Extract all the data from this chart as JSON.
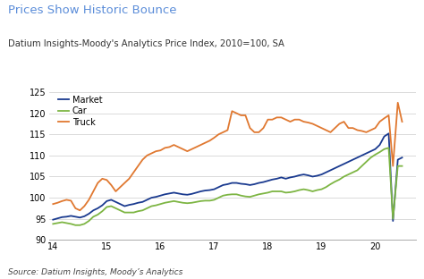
{
  "title": "Prices Show Historic Bounce",
  "subtitle": "Datium Insights-Moody's Analytics Price Index, 2010=100, SA",
  "source": "Source: Datium Insights, Moody’s Analytics",
  "xlim": [
    13.92,
    20.75
  ],
  "ylim": [
    90,
    126
  ],
  "yticks": [
    90,
    95,
    100,
    105,
    110,
    115,
    120,
    125
  ],
  "xticks": [
    14,
    15,
    16,
    17,
    18,
    19,
    20
  ],
  "title_color": "#5B8DD9",
  "subtitle_color": "#333333",
  "source_color": "#444444",
  "line_colors": {
    "Market": "#1A3A8F",
    "Car": "#7DB543",
    "Truck": "#E07830"
  },
  "market_x": [
    14.0,
    14.083,
    14.167,
    14.25,
    14.333,
    14.417,
    14.5,
    14.583,
    14.667,
    14.75,
    14.833,
    14.917,
    15.0,
    15.083,
    15.167,
    15.25,
    15.333,
    15.417,
    15.5,
    15.583,
    15.667,
    15.75,
    15.833,
    15.917,
    16.0,
    16.083,
    16.167,
    16.25,
    16.333,
    16.417,
    16.5,
    16.583,
    16.667,
    16.75,
    16.833,
    16.917,
    17.0,
    17.083,
    17.167,
    17.25,
    17.333,
    17.417,
    17.5,
    17.583,
    17.667,
    17.75,
    17.833,
    17.917,
    18.0,
    18.083,
    18.167,
    18.25,
    18.333,
    18.417,
    18.5,
    18.583,
    18.667,
    18.75,
    18.833,
    18.917,
    19.0,
    19.083,
    19.167,
    19.25,
    19.333,
    19.417,
    19.5,
    19.583,
    19.667,
    19.75,
    19.833,
    19.917,
    20.0,
    20.083,
    20.167,
    20.25,
    20.33,
    20.42,
    20.5
  ],
  "market_y": [
    94.8,
    95.1,
    95.4,
    95.5,
    95.7,
    95.5,
    95.3,
    95.6,
    96.2,
    97.0,
    97.5,
    98.2,
    99.2,
    99.5,
    99.0,
    98.5,
    98.0,
    98.3,
    98.5,
    98.8,
    99.0,
    99.5,
    100.0,
    100.2,
    100.5,
    100.8,
    101.0,
    101.2,
    101.0,
    100.8,
    100.7,
    100.9,
    101.2,
    101.5,
    101.7,
    101.8,
    102.0,
    102.5,
    103.0,
    103.2,
    103.5,
    103.5,
    103.3,
    103.2,
    103.0,
    103.2,
    103.5,
    103.7,
    104.0,
    104.3,
    104.5,
    104.8,
    104.5,
    104.8,
    105.0,
    105.3,
    105.5,
    105.3,
    105.0,
    105.2,
    105.5,
    106.0,
    106.5,
    107.0,
    107.5,
    108.0,
    108.5,
    109.0,
    109.5,
    110.0,
    110.5,
    111.0,
    111.5,
    112.5,
    114.5,
    115.2,
    94.5,
    109.0,
    109.5
  ],
  "car_x": [
    14.0,
    14.083,
    14.167,
    14.25,
    14.333,
    14.417,
    14.5,
    14.583,
    14.667,
    14.75,
    14.833,
    14.917,
    15.0,
    15.083,
    15.167,
    15.25,
    15.333,
    15.417,
    15.5,
    15.583,
    15.667,
    15.75,
    15.833,
    15.917,
    16.0,
    16.083,
    16.167,
    16.25,
    16.333,
    16.417,
    16.5,
    16.583,
    16.667,
    16.75,
    16.833,
    16.917,
    17.0,
    17.083,
    17.167,
    17.25,
    17.333,
    17.417,
    17.5,
    17.583,
    17.667,
    17.75,
    17.833,
    17.917,
    18.0,
    18.083,
    18.167,
    18.25,
    18.333,
    18.417,
    18.5,
    18.583,
    18.667,
    18.75,
    18.833,
    18.917,
    19.0,
    19.083,
    19.167,
    19.25,
    19.333,
    19.417,
    19.5,
    19.583,
    19.667,
    19.75,
    19.833,
    19.917,
    20.0,
    20.083,
    20.167,
    20.25,
    20.33,
    20.42,
    20.5
  ],
  "car_y": [
    93.8,
    94.0,
    94.2,
    94.0,
    93.8,
    93.5,
    93.5,
    93.8,
    94.5,
    95.5,
    96.0,
    96.8,
    97.8,
    98.0,
    97.5,
    97.0,
    96.5,
    96.5,
    96.5,
    96.8,
    97.0,
    97.5,
    98.0,
    98.2,
    98.5,
    98.8,
    99.0,
    99.2,
    99.0,
    98.8,
    98.7,
    98.8,
    99.0,
    99.2,
    99.3,
    99.3,
    99.5,
    100.0,
    100.5,
    100.7,
    100.8,
    100.8,
    100.5,
    100.3,
    100.2,
    100.5,
    100.8,
    101.0,
    101.2,
    101.5,
    101.5,
    101.5,
    101.2,
    101.3,
    101.5,
    101.8,
    102.0,
    101.8,
    101.5,
    101.8,
    102.0,
    102.5,
    103.2,
    103.8,
    104.3,
    105.0,
    105.5,
    106.0,
    106.5,
    107.5,
    108.5,
    109.5,
    110.2,
    110.8,
    111.5,
    111.8,
    95.0,
    107.5,
    107.5
  ],
  "truck_x": [
    14.0,
    14.083,
    14.167,
    14.25,
    14.333,
    14.417,
    14.5,
    14.583,
    14.667,
    14.75,
    14.833,
    14.917,
    15.0,
    15.083,
    15.167,
    15.25,
    15.333,
    15.417,
    15.5,
    15.583,
    15.667,
    15.75,
    15.833,
    15.917,
    16.0,
    16.083,
    16.167,
    16.25,
    16.333,
    16.417,
    16.5,
    16.583,
    16.667,
    16.75,
    16.833,
    16.917,
    17.0,
    17.083,
    17.167,
    17.25,
    17.333,
    17.417,
    17.5,
    17.583,
    17.667,
    17.75,
    17.833,
    17.917,
    18.0,
    18.083,
    18.167,
    18.25,
    18.333,
    18.417,
    18.5,
    18.583,
    18.667,
    18.75,
    18.833,
    18.917,
    19.0,
    19.083,
    19.167,
    19.25,
    19.333,
    19.417,
    19.5,
    19.583,
    19.667,
    19.75,
    19.833,
    19.917,
    20.0,
    20.083,
    20.167,
    20.25,
    20.33,
    20.42,
    20.5
  ],
  "truck_y": [
    98.5,
    98.8,
    99.2,
    99.5,
    99.3,
    97.5,
    97.0,
    98.0,
    99.5,
    101.5,
    103.5,
    104.5,
    104.2,
    103.0,
    101.5,
    102.5,
    103.5,
    104.5,
    106.0,
    107.5,
    109.0,
    110.0,
    110.5,
    111.0,
    111.2,
    111.8,
    112.0,
    112.5,
    112.0,
    111.5,
    111.0,
    111.5,
    112.0,
    112.5,
    113.0,
    113.5,
    114.2,
    115.0,
    115.5,
    116.0,
    120.5,
    120.0,
    119.5,
    119.5,
    116.5,
    115.5,
    115.5,
    116.5,
    118.5,
    118.5,
    119.0,
    119.0,
    118.5,
    118.0,
    118.5,
    118.5,
    118.0,
    117.8,
    117.5,
    117.0,
    116.5,
    116.0,
    115.5,
    116.5,
    117.5,
    118.0,
    116.5,
    116.5,
    116.0,
    115.8,
    115.5,
    116.0,
    116.5,
    118.0,
    118.8,
    119.5,
    107.5,
    122.5,
    118.0
  ]
}
